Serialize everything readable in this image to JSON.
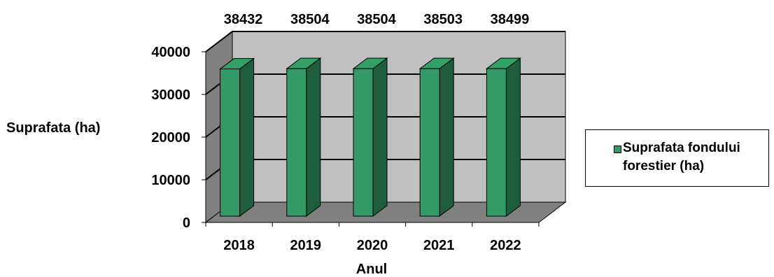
{
  "chart_data": {
    "type": "bar",
    "categories": [
      "2018",
      "2019",
      "2020",
      "2021",
      "2022"
    ],
    "series": [
      {
        "name": "Suprafata fondului forestier (ha)",
        "values": [
          38432,
          38504,
          38504,
          38503,
          38499
        ]
      }
    ],
    "data_labels": [
      "38432",
      "38504",
      "38504",
      "38503",
      "38499"
    ],
    "xlabel": "Anul",
    "ylabel": "Suprafata (ha)",
    "ylim": [
      0,
      40000
    ],
    "yticks": [
      "0",
      "10000",
      "20000",
      "30000",
      "40000"
    ],
    "grid": true,
    "legend_position": "right",
    "colors": {
      "bar_front": "#339966",
      "bar_side": "#1f5c3d",
      "bar_top": "#33a066",
      "wall": "#c0c0c0",
      "side_wall": "#808080",
      "floor": "#808080"
    }
  }
}
